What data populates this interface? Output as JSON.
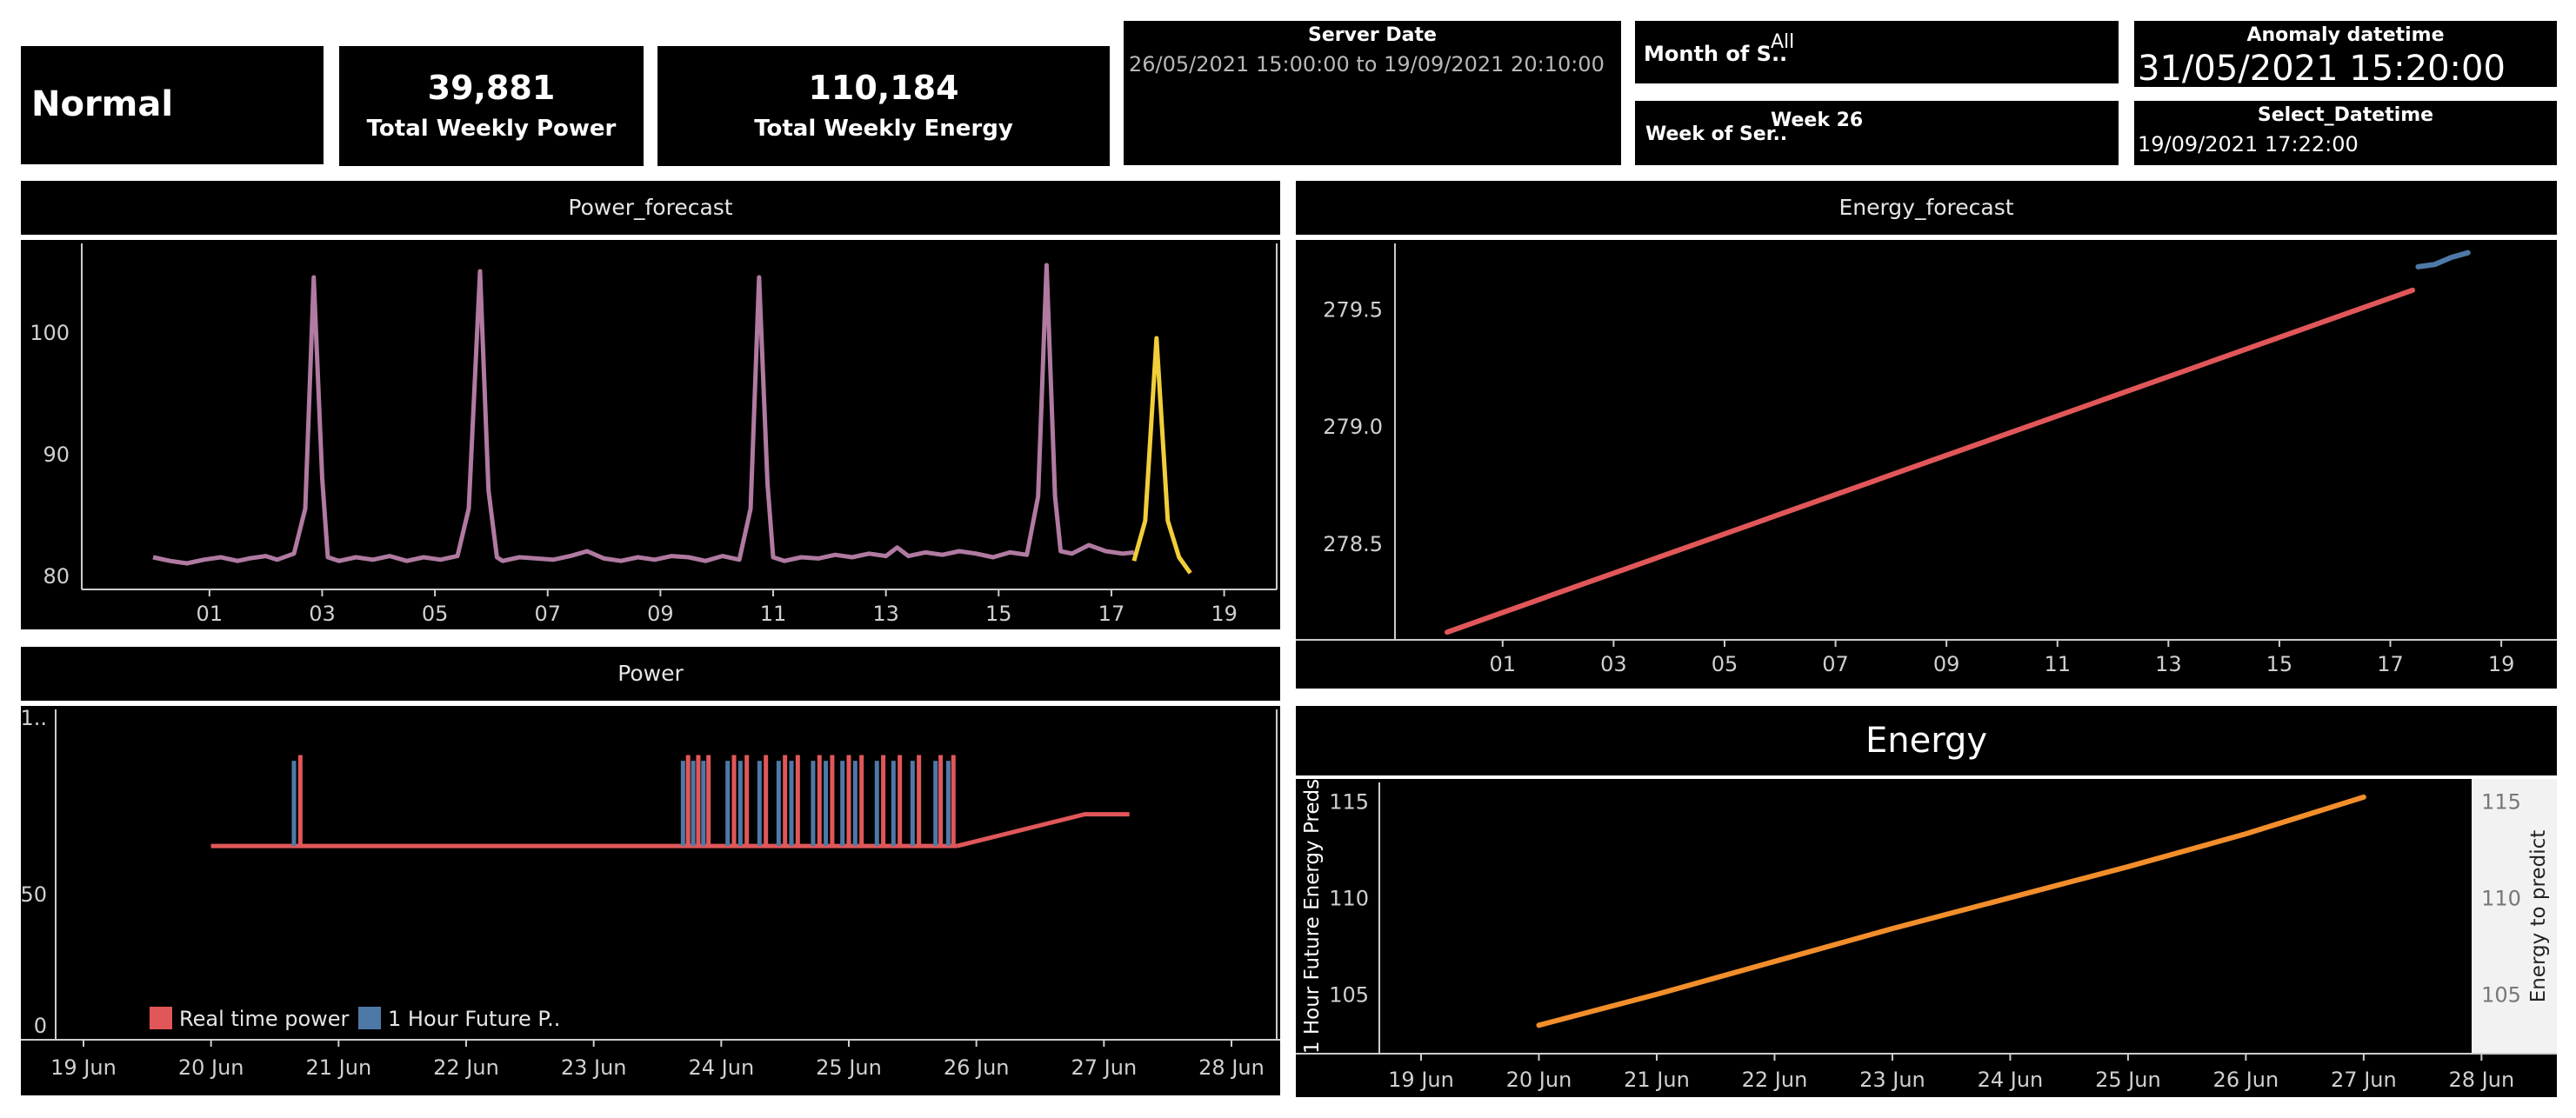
{
  "kpis": {
    "status": "Normal",
    "total_weekly_power": {
      "value": "39,881",
      "label": "Total Weekly Power"
    },
    "total_weekly_energy": {
      "value": "110,184",
      "label": "Total Weekly Energy"
    }
  },
  "filters": {
    "server_date": {
      "label": "Server Date",
      "value": "26/05/2021 15:00:00 to 19/09/2021 20:10:00"
    },
    "month_of_server": {
      "label": "Month of S..",
      "value": "All"
    },
    "week_of_server": {
      "label": "Week of Ser..",
      "value": "Week 26"
    },
    "anomaly_datetime": {
      "label": "Anomaly datetime",
      "value": "31/05/2021 15:20:00"
    },
    "select_datetime": {
      "label": "Select_Datetime",
      "value": "19/09/2021 17:22:00"
    }
  },
  "panels": {
    "power_forecast_title": "Power_forecast",
    "energy_forecast_title": "Energy_forecast",
    "power_title": "Power",
    "energy_title": "Energy"
  },
  "colors": {
    "background": "#000000",
    "power_forecast_line": "#b07aa1",
    "forecast_line": "#f1ce3a",
    "real_time": "#e15759",
    "future": "#4e79a7",
    "energy_line": "#f28e2b"
  },
  "chart_data": [
    {
      "id": "power_forecast",
      "type": "line",
      "title": "Power_forecast",
      "xlabel": "",
      "ylabel": "",
      "x_ticks": [
        "01",
        "03",
        "05",
        "07",
        "09",
        "11",
        "13",
        "15",
        "17",
        "19"
      ],
      "y_ticks": [
        80,
        90,
        100
      ],
      "xlim": [
        0,
        19.5
      ],
      "ylim": [
        79,
        107
      ],
      "grid": false,
      "series": [
        {
          "color": "#b07aa1",
          "x": [
            0.0,
            0.3,
            0.6,
            0.9,
            1.2,
            1.5,
            1.7,
            2.0,
            2.2,
            2.5,
            2.7,
            2.85,
            3.0,
            3.1,
            3.3,
            3.6,
            3.9,
            4.2,
            4.5,
            4.8,
            5.1,
            5.4,
            5.6,
            5.8,
            5.95,
            6.1,
            6.2,
            6.5,
            6.8,
            7.1,
            7.4,
            7.7,
            8.0,
            8.3,
            8.6,
            8.9,
            9.2,
            9.5,
            9.8,
            10.1,
            10.4,
            10.6,
            10.75,
            10.9,
            11.0,
            11.2,
            11.5,
            11.8,
            12.1,
            12.4,
            12.7,
            13.0,
            13.2,
            13.4,
            13.7,
            14.0,
            14.3,
            14.6,
            14.9,
            15.2,
            15.5,
            15.7,
            15.85,
            16.0,
            16.1,
            16.3,
            16.6,
            16.9,
            17.2,
            17.4
          ],
          "y": [
            81.5,
            81.2,
            81.0,
            81.3,
            81.5,
            81.2,
            81.4,
            81.6,
            81.3,
            81.8,
            85.5,
            104.5,
            88,
            81.5,
            81.2,
            81.5,
            81.3,
            81.6,
            81.2,
            81.5,
            81.3,
            81.6,
            85.5,
            105,
            87,
            81.5,
            81.2,
            81.5,
            81.4,
            81.3,
            81.6,
            82.0,
            81.4,
            81.2,
            81.5,
            81.3,
            81.6,
            81.5,
            81.2,
            81.6,
            81.3,
            85.5,
            104.5,
            87.5,
            81.5,
            81.2,
            81.5,
            81.4,
            81.7,
            81.5,
            81.8,
            81.6,
            82.3,
            81.6,
            81.9,
            81.7,
            82.0,
            81.8,
            81.5,
            81.9,
            81.7,
            86.5,
            105.5,
            86.5,
            82.0,
            81.8,
            82.5,
            82.0,
            81.8,
            81.9
          ]
        },
        {
          "color": "#f1ce3a",
          "x": [
            17.4,
            17.6,
            17.8,
            18.0,
            18.2,
            18.4
          ],
          "y": [
            81.2,
            84.5,
            99.5,
            84.5,
            81.5,
            80.2
          ]
        }
      ]
    },
    {
      "id": "energy_forecast",
      "type": "line",
      "title": "Energy_forecast",
      "xlabel": "",
      "ylabel": "",
      "x_ticks": [
        "01",
        "03",
        "05",
        "07",
        "09",
        "11",
        "13",
        "15",
        "17",
        "19"
      ],
      "y_ticks": [
        278.5,
        279.0,
        279.5
      ],
      "xlim": [
        0,
        19.5
      ],
      "ylim": [
        278.05,
        279.75
      ],
      "grid": false,
      "series": [
        {
          "color": "#e15759",
          "x": [
            0.0,
            17.4
          ],
          "y": [
            278.12,
            279.58
          ]
        },
        {
          "color": "#4e79a7",
          "x": [
            17.5,
            17.8,
            18.1,
            18.4
          ],
          "y": [
            279.68,
            279.69,
            279.72,
            279.74
          ]
        }
      ]
    },
    {
      "id": "power",
      "type": "line",
      "title": "Power",
      "xlabel": "",
      "ylabel": "",
      "x_ticks": [
        "19 Jun",
        "20 Jun",
        "21 Jun",
        "22 Jun",
        "23 Jun",
        "24 Jun",
        "25 Jun",
        "26 Jun",
        "27 Jun",
        "28 Jun"
      ],
      "y_ticks": [
        0,
        50
      ],
      "y_top_label": "1..",
      "xlim": [
        19,
        28.3
      ],
      "ylim": [
        0,
        115
      ],
      "legend": "bottom-left",
      "grid": false,
      "series": [
        {
          "name": "1 Hour Future P..",
          "color": "#4e79a7",
          "spikes_x": [
            20.65,
            23.7,
            23.78,
            23.86,
            24.05,
            24.15,
            24.3,
            24.45,
            24.55,
            24.72,
            24.82,
            24.95,
            25.05,
            25.22,
            25.35,
            25.5,
            25.68,
            25.78
          ],
          "baseline": 66.5,
          "peak": 96
        },
        {
          "name": "Real time power",
          "color": "#e15759",
          "spikes_x": [
            20.7,
            23.74,
            23.82,
            23.9,
            24.1,
            24.2,
            24.35,
            24.5,
            24.6,
            24.77,
            24.87,
            25.0,
            25.1,
            25.27,
            25.4,
            25.55,
            25.72,
            25.82
          ],
          "baseline": 66.5,
          "peak": 98,
          "ramp": {
            "x": [
              25.85,
              26.85,
              27.2
            ],
            "y": [
              66.5,
              77.5,
              77.5
            ]
          }
        }
      ]
    },
    {
      "id": "energy",
      "type": "line",
      "title": "Energy",
      "xlabel": "",
      "ylabel": "1 Hour Future Energy Preds",
      "ylabel_right": "Energy to predict",
      "x_ticks": [
        "19 Jun",
        "20 Jun",
        "21 Jun",
        "22 Jun",
        "23 Jun",
        "24 Jun",
        "25 Jun",
        "26 Jun",
        "27 Jun",
        "28 Jun"
      ],
      "y_ticks": [
        105,
        110,
        115
      ],
      "xlim": [
        19,
        28.3
      ],
      "ylim": [
        102.2,
        115.6
      ],
      "grid": false,
      "series": [
        {
          "color": "#f28e2b",
          "x": [
            20.0,
            21.0,
            22.0,
            23.0,
            24.0,
            25.0,
            26.0,
            27.0
          ],
          "y": [
            103.4,
            105.0,
            106.7,
            108.4,
            110.0,
            111.6,
            113.3,
            115.2
          ]
        }
      ]
    }
  ]
}
